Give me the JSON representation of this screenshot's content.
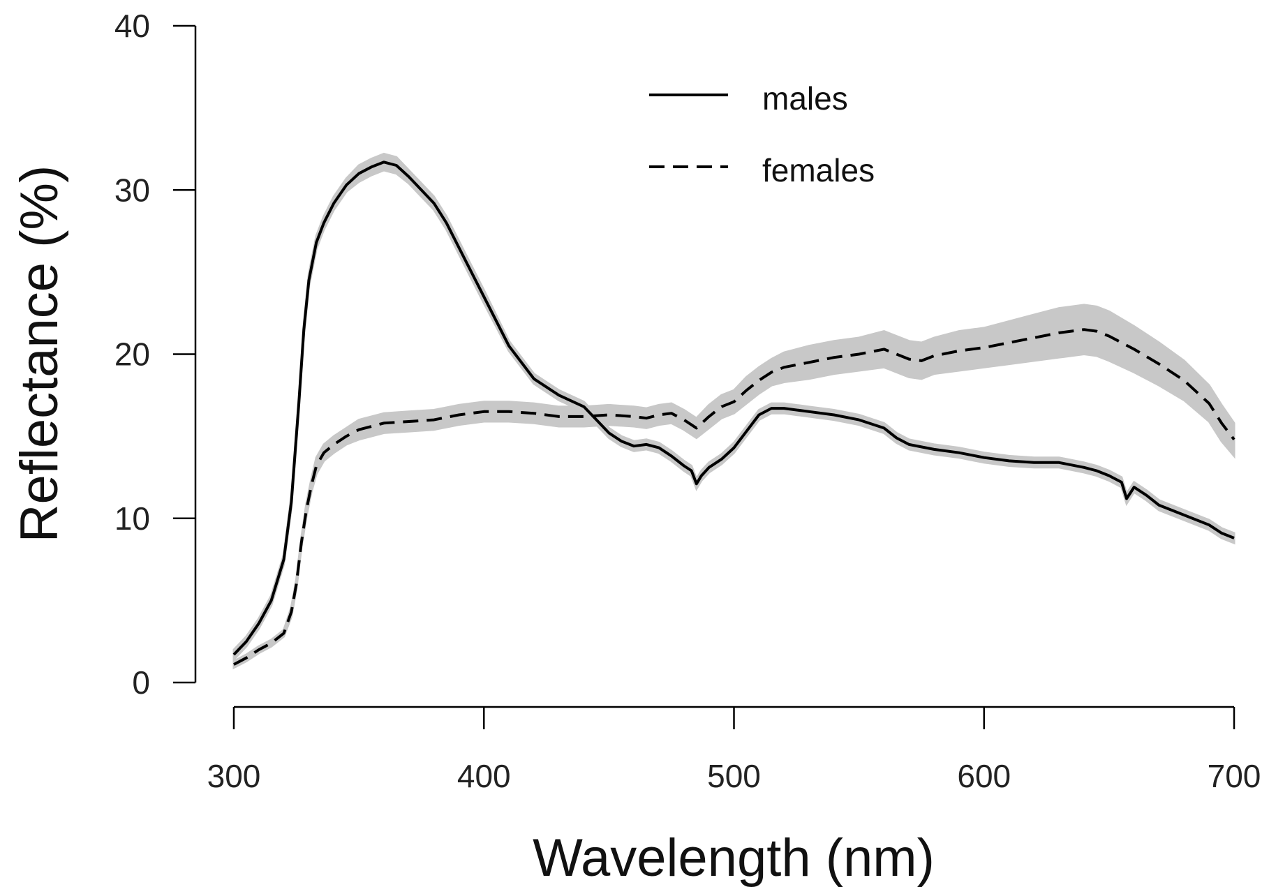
{
  "chart_data": {
    "type": "line",
    "title": "",
    "xlabel": "Wavelength (nm)",
    "ylabel": "Reflectance (%)",
    "xlim": [
      300,
      700
    ],
    "ylim": [
      0,
      40
    ],
    "xticks": [
      "300",
      "400",
      "500",
      "600",
      "700"
    ],
    "yticks": [
      "0",
      "10",
      "20",
      "30",
      "40"
    ],
    "grid": false,
    "legend_position": "top-center",
    "band_color": "#c8c8c8",
    "line_color": "#000000",
    "series": [
      {
        "name": "males",
        "style": "solid",
        "x": [
          300,
          305,
          310,
          315,
          320,
          323,
          326,
          328,
          330,
          333,
          336,
          340,
          345,
          350,
          355,
          360,
          365,
          370,
          375,
          380,
          385,
          390,
          395,
          400,
          410,
          420,
          430,
          440,
          450,
          455,
          460,
          465,
          470,
          475,
          480,
          483,
          485,
          487,
          490,
          495,
          500,
          505,
          510,
          515,
          520,
          530,
          540,
          550,
          560,
          565,
          570,
          580,
          590,
          600,
          610,
          620,
          630,
          640,
          645,
          650,
          655,
          657,
          660,
          665,
          670,
          680,
          690,
          695,
          700
        ],
        "y": [
          1.7,
          2.5,
          3.6,
          5.0,
          7.5,
          11.0,
          17.0,
          21.5,
          24.5,
          26.8,
          28.0,
          29.2,
          30.3,
          31.0,
          31.4,
          31.7,
          31.5,
          30.8,
          30.0,
          29.2,
          28.0,
          26.5,
          25.0,
          23.5,
          20.5,
          18.5,
          17.5,
          16.8,
          15.2,
          14.7,
          14.4,
          14.5,
          14.3,
          13.8,
          13.2,
          12.9,
          12.1,
          12.6,
          13.1,
          13.6,
          14.3,
          15.3,
          16.3,
          16.7,
          16.7,
          16.5,
          16.3,
          16.0,
          15.5,
          14.9,
          14.5,
          14.2,
          14.0,
          13.7,
          13.5,
          13.4,
          13.4,
          13.1,
          12.9,
          12.6,
          12.2,
          11.2,
          11.9,
          11.4,
          10.8,
          10.2,
          9.6,
          9.1,
          8.8
        ],
        "band": [
          0.3,
          0.3,
          0.3,
          0.3,
          0.3,
          0.4,
          0.4,
          0.4,
          0.4,
          0.4,
          0.4,
          0.4,
          0.4,
          0.5,
          0.5,
          0.5,
          0.5,
          0.4,
          0.4,
          0.4,
          0.4,
          0.4,
          0.4,
          0.4,
          0.3,
          0.3,
          0.3,
          0.3,
          0.3,
          0.3,
          0.3,
          0.3,
          0.3,
          0.3,
          0.3,
          0.3,
          0.3,
          0.3,
          0.3,
          0.3,
          0.3,
          0.3,
          0.3,
          0.3,
          0.3,
          0.3,
          0.3,
          0.3,
          0.3,
          0.3,
          0.3,
          0.3,
          0.3,
          0.3,
          0.3,
          0.3,
          0.3,
          0.3,
          0.3,
          0.3,
          0.3,
          0.3,
          0.3,
          0.3,
          0.3,
          0.3,
          0.3,
          0.3,
          0.3
        ]
      },
      {
        "name": "females",
        "style": "dashed",
        "x": [
          300,
          305,
          310,
          315,
          320,
          323,
          325,
          327,
          329,
          331,
          333,
          336,
          340,
          345,
          350,
          360,
          370,
          380,
          390,
          400,
          410,
          420,
          430,
          440,
          450,
          460,
          465,
          470,
          475,
          480,
          485,
          490,
          495,
          500,
          505,
          510,
          515,
          520,
          530,
          540,
          550,
          560,
          565,
          570,
          575,
          580,
          590,
          600,
          610,
          620,
          630,
          640,
          645,
          650,
          660,
          670,
          680,
          690,
          695,
          700
        ],
        "y": [
          1.1,
          1.5,
          2.0,
          2.4,
          3.0,
          4.3,
          6.0,
          8.5,
          10.5,
          12.0,
          13.2,
          14.0,
          14.5,
          15.0,
          15.4,
          15.8,
          15.9,
          16.0,
          16.3,
          16.5,
          16.5,
          16.4,
          16.2,
          16.2,
          16.3,
          16.2,
          16.1,
          16.3,
          16.4,
          16.0,
          15.5,
          16.2,
          16.8,
          17.1,
          17.8,
          18.4,
          18.9,
          19.2,
          19.5,
          19.8,
          20.0,
          20.3,
          20.0,
          19.7,
          19.6,
          19.9,
          20.2,
          20.4,
          20.7,
          21.0,
          21.3,
          21.5,
          21.4,
          21.1,
          20.3,
          19.4,
          18.4,
          17.0,
          15.8,
          14.8
        ],
        "band": [
          0.2,
          0.2,
          0.2,
          0.2,
          0.2,
          0.3,
          0.3,
          0.3,
          0.4,
          0.4,
          0.5,
          0.5,
          0.5,
          0.5,
          0.6,
          0.6,
          0.6,
          0.6,
          0.6,
          0.6,
          0.6,
          0.6,
          0.6,
          0.6,
          0.6,
          0.6,
          0.6,
          0.6,
          0.6,
          0.6,
          0.6,
          0.7,
          0.7,
          0.7,
          0.8,
          0.8,
          0.8,
          0.9,
          1.0,
          1.0,
          1.0,
          1.1,
          1.1,
          1.1,
          1.1,
          1.1,
          1.2,
          1.2,
          1.3,
          1.4,
          1.5,
          1.5,
          1.5,
          1.5,
          1.4,
          1.3,
          1.2,
          1.1,
          1.1,
          1.0
        ]
      }
    ]
  }
}
